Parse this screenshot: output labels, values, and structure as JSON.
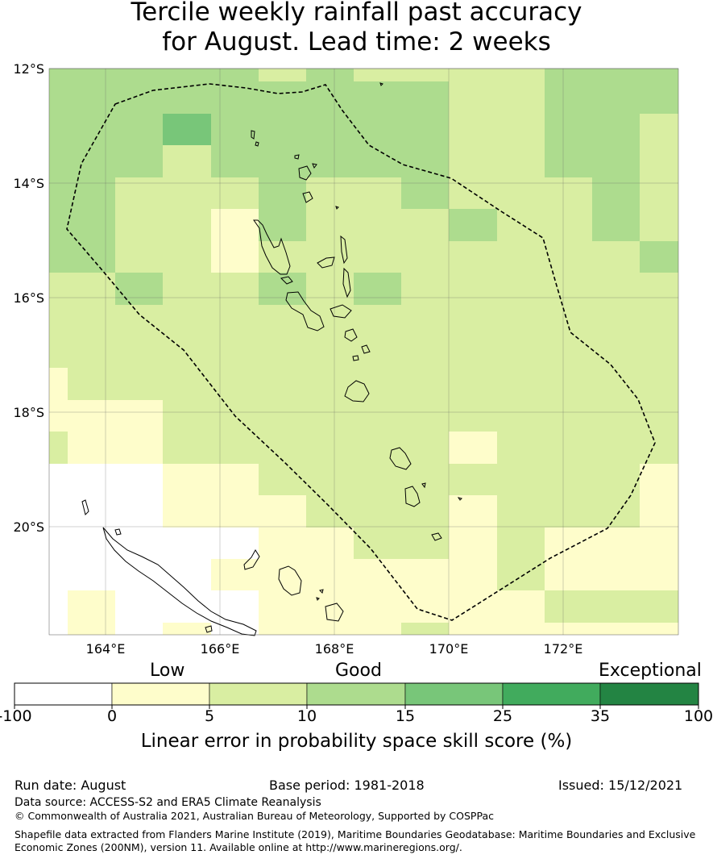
{
  "title_line1": "Tercile weekly rainfall past accuracy",
  "title_line2": "for August. Lead time: 2 weeks",
  "map": {
    "lat_labels": [
      "12°S",
      "14°S",
      "16°S",
      "18°S",
      "20°S"
    ],
    "lon_labels": [
      "164°E",
      "166°E",
      "168°E",
      "170°E",
      "172°E"
    ],
    "boundary": "dashed-black",
    "colors": {
      "lt0": "#ffffff",
      "0-5": "#fefdcb",
      "5-10": "#d9eea2",
      "10-15": "#addc8e",
      "15-25": "#78c679",
      "25-35": "#41ab5d",
      "35-100": "#238443"
    }
  },
  "colorbar": {
    "categories": [
      "Low",
      "Good",
      "Exceptional"
    ],
    "ticks": [
      "-100",
      "0",
      "5",
      "10",
      "15",
      "25",
      "35",
      "100"
    ],
    "label": "Linear error in probability space skill score (%)"
  },
  "footer": {
    "run_date": "Run date: August",
    "base_period": "Base period: 1981-2018",
    "issued": "Issued: 15/12/2021",
    "data_source": "Data source: ACCESS-S2 and ERA5 Climate Reanalysis",
    "copyright": "© Commonwealth of Australia 2021, Australian Bureau of Meteorology, Supported by COSPPac",
    "shapefile": "Shapefile data extracted from Flanders Marine Institute (2019), Maritime Boundaries Geodatabase: Maritime Boundaries and Exclusive Economic Zones (200NM), version 11. Available online at http://www.marineregions.org/."
  }
}
